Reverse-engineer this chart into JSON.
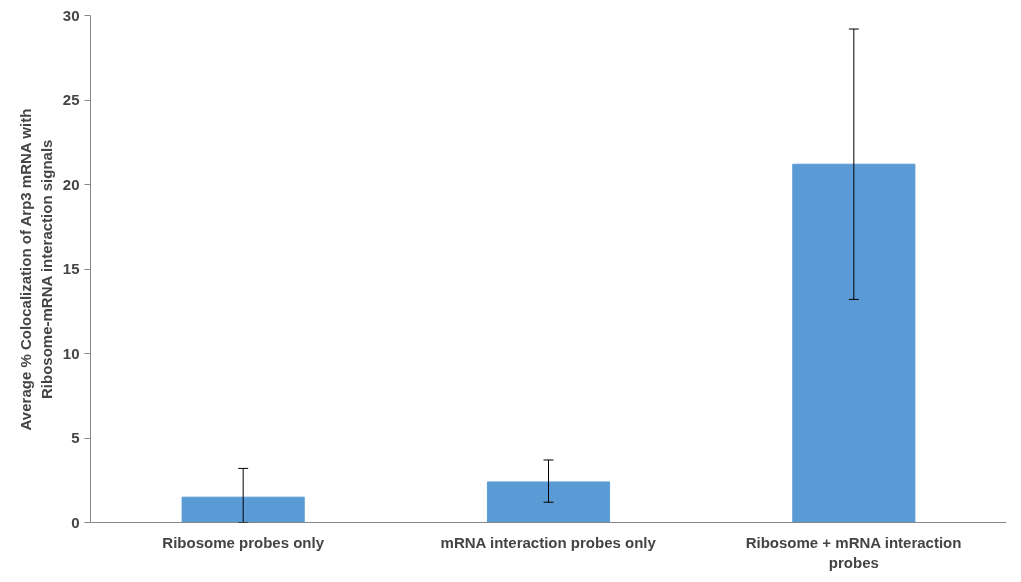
{
  "chart_data": {
    "type": "bar",
    "ylabel": "Average % Colocalization of Arp3 mRNA with Ribosome-mRNA interaction signals",
    "categories": [
      "Ribosome probes only",
      "mRNA interaction probes only",
      "Ribosome + mRNA interaction probes"
    ],
    "values": [
      1.5,
      2.4,
      21.2
    ],
    "errors": [
      [
        0,
        3.2
      ],
      [
        1.2,
        3.7
      ],
      [
        13.2,
        29.2
      ]
    ],
    "color": "#5b9bd5",
    "ylim": [
      0,
      30
    ],
    "yticks": [
      0,
      5,
      10,
      15,
      20,
      25,
      30
    ],
    "grid": false
  }
}
